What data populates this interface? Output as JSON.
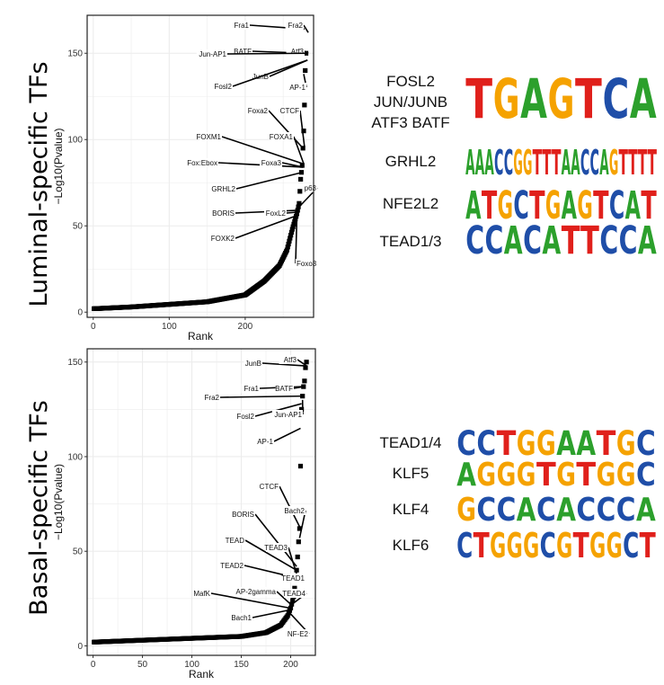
{
  "panels": [
    {
      "side_title": "Luminal-specific TFs",
      "motifs": [
        {
          "lines": [
            "FOSL2",
            "JUN/JUNB",
            "ATF3 BATF"
          ],
          "logo": "TGAGTCA",
          "colors": {
            "A": "#2ca02c",
            "C": "#1f4ea8",
            "G": "#f5a200",
            "T": "#e0201b"
          }
        },
        {
          "lines": [
            "GRHL2"
          ],
          "logo": "AAACCGGTTTAACCAGTTTT"
        },
        {
          "lines": [
            "NFE2L2"
          ],
          "logo": "ATGCTGAGTCAT"
        },
        {
          "lines": [
            "TEAD1/3"
          ],
          "logo": "CCACATTCCA"
        }
      ]
    },
    {
      "side_title": "Basal-specific TFs",
      "motifs": [
        {
          "lines": [
            "TEAD1/4"
          ],
          "logo": "CCTGGAATGC"
        },
        {
          "lines": [
            "KLF5"
          ],
          "logo": "AGGGTGTGGC"
        },
        {
          "lines": [
            "KLF4"
          ],
          "logo": "GCCACACCCA"
        },
        {
          "lines": [
            "KLF6"
          ],
          "logo": "CTGGGCGTGGCT"
        }
      ]
    }
  ],
  "chart_data": [
    {
      "type": "scatter",
      "title": "",
      "xlabel": "Rank",
      "ylabel": "−Log10(Pvalue)",
      "xlim": [
        -8,
        290
      ],
      "ylim": [
        -3,
        172
      ],
      "xticks": [
        0,
        100,
        200
      ],
      "yticks": [
        0,
        50,
        100,
        150
      ],
      "grid": true,
      "n_points": 280,
      "curve_knots": [
        [
          1,
          2
        ],
        [
          50,
          3
        ],
        [
          100,
          4.5
        ],
        [
          150,
          6
        ],
        [
          200,
          10
        ],
        [
          225,
          18
        ],
        [
          245,
          27
        ],
        [
          255,
          36
        ],
        [
          262,
          48
        ],
        [
          268,
          57
        ],
        [
          271,
          63
        ],
        [
          273,
          77
        ],
        [
          275,
          85
        ],
        [
          276,
          95
        ],
        [
          277,
          105
        ],
        [
          278,
          120
        ],
        [
          279,
          140
        ],
        [
          280,
          150
        ],
        [
          281,
          155
        ],
        [
          282,
          160
        ],
        [
          283,
          166
        ]
      ],
      "labels": [
        {
          "text": "Fra1",
          "rank": 278,
          "value": 164
        },
        {
          "text": "Fra2",
          "rank": 283,
          "value": 162
        },
        {
          "text": "BATF",
          "rank": 282,
          "value": 150
        },
        {
          "text": "Atf3",
          "rank": 283,
          "value": 150
        },
        {
          "text": "Jun-AP1",
          "rank": 282,
          "value": 150
        },
        {
          "text": "JunB",
          "rank": 282,
          "value": 146
        },
        {
          "text": "Fosl2",
          "rank": 282,
          "value": 146
        },
        {
          "text": "AP-1",
          "rank": 277,
          "value": 138
        },
        {
          "text": "Foxa2",
          "rank": 276,
          "value": 95
        },
        {
          "text": "CTCF",
          "rank": 278,
          "value": 96
        },
        {
          "text": "FOXM1",
          "rank": 276,
          "value": 86
        },
        {
          "text": "FOXA1",
          "rank": 277,
          "value": 86
        },
        {
          "text": "Fox:Ebox",
          "rank": 276,
          "value": 84
        },
        {
          "text": "Foxa3",
          "rank": 276,
          "value": 84
        },
        {
          "text": "GRHL2",
          "rank": 275,
          "value": 81
        },
        {
          "text": "p63",
          "rank": 271,
          "value": 61
        },
        {
          "text": "BORIS",
          "rank": 270,
          "value": 59
        },
        {
          "text": "FoxL2",
          "rank": 270,
          "value": 58
        },
        {
          "text": "FOXK2",
          "rank": 268,
          "value": 56
        },
        {
          "text": "Foxo3",
          "rank": 268,
          "value": 55
        }
      ]
    },
    {
      "type": "scatter",
      "title": "",
      "xlabel": "Rank",
      "ylabel": "−Log10(Pvalue)",
      "xlim": [
        -6,
        225
      ],
      "ylim": [
        -5,
        157
      ],
      "xticks": [
        0,
        50,
        100,
        150,
        200
      ],
      "yticks": [
        0,
        50,
        100,
        150
      ],
      "grid": true,
      "n_points": 216,
      "curve_knots": [
        [
          1,
          2
        ],
        [
          50,
          3
        ],
        [
          100,
          4
        ],
        [
          150,
          5
        ],
        [
          175,
          7
        ],
        [
          190,
          11
        ],
        [
          197,
          16
        ],
        [
          200,
          20
        ],
        [
          203,
          26
        ],
        [
          205,
          35
        ],
        [
          206,
          40
        ],
        [
          207,
          47
        ],
        [
          208,
          55
        ],
        [
          209,
          62
        ],
        [
          210,
          95
        ],
        [
          211,
          125
        ],
        [
          212,
          132
        ],
        [
          213,
          137
        ],
        [
          214,
          140
        ],
        [
          215,
          147
        ],
        [
          216,
          150
        ]
      ],
      "labels": [
        {
          "text": "JunB",
          "rank": 214,
          "value": 148
        },
        {
          "text": "Atf3",
          "rank": 216,
          "value": 148
        },
        {
          "text": "Fra1",
          "rank": 213,
          "value": 137
        },
        {
          "text": "BATF",
          "rank": 213,
          "value": 137
        },
        {
          "text": "Fra2",
          "rank": 212,
          "value": 132
        },
        {
          "text": "Fosl2",
          "rank": 211,
          "value": 128
        },
        {
          "text": "Jun-AP1",
          "rank": 212,
          "value": 130
        },
        {
          "text": "AP-1",
          "rank": 210,
          "value": 115
        },
        {
          "text": "CTCF",
          "rank": 209,
          "value": 63
        },
        {
          "text": "Bach2",
          "rank": 209,
          "value": 57
        },
        {
          "text": "BORIS",
          "rank": 206,
          "value": 42
        },
        {
          "text": "TEAD",
          "rank": 206,
          "value": 40
        },
        {
          "text": "TEAD3",
          "rank": 206,
          "value": 38
        },
        {
          "text": "TEAD2",
          "rank": 205,
          "value": 36
        },
        {
          "text": "TEAD1",
          "rank": 205,
          "value": 36
        },
        {
          "text": "AP-2gamma",
          "rank": 200,
          "value": 22
        },
        {
          "text": "MafK",
          "rank": 199,
          "value": 20
        },
        {
          "text": "TEAD4",
          "rank": 199,
          "value": 21
        },
        {
          "text": "Bach1",
          "rank": 199,
          "value": 19
        },
        {
          "text": "NF-E2",
          "rank": 198,
          "value": 18
        }
      ]
    }
  ]
}
